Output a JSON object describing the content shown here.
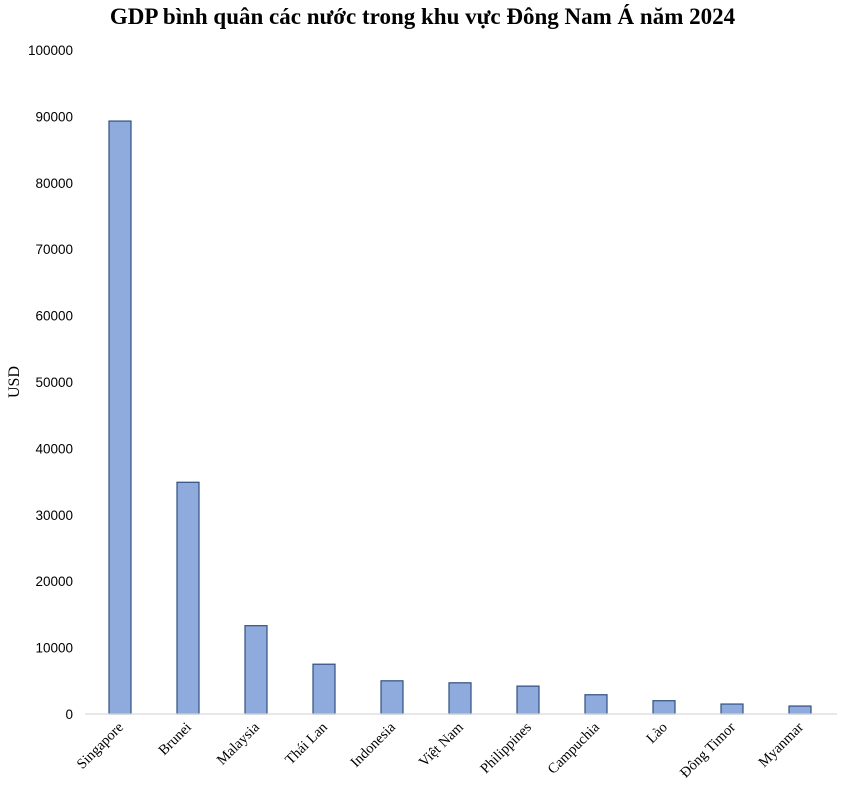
{
  "chart_data": {
    "type": "bar",
    "title": "GDP bình quân các nước trong khu vực Đông Nam Á năm 2024",
    "xlabel": "",
    "ylabel": "USD",
    "ylim": [
      0,
      100000
    ],
    "yticks": [
      0,
      10000,
      20000,
      30000,
      40000,
      50000,
      60000,
      70000,
      80000,
      90000,
      100000
    ],
    "grid": false,
    "legend": null,
    "categories": [
      "Singapore",
      "Brunei",
      "Malaysia",
      "Thái Lan",
      "Indonesia",
      "Việt Nam",
      "Philippines",
      "Campuchia",
      "Lào",
      "Đông Timor",
      "Myanmar"
    ],
    "values": [
      89300,
      34900,
      13300,
      7500,
      5000,
      4700,
      4200,
      2900,
      2000,
      1500,
      1200
    ],
    "colors": {
      "bar_fill": "#8FAADC",
      "bar_stroke": "#2F4F7F",
      "axis": "#D9D9D9"
    }
  }
}
